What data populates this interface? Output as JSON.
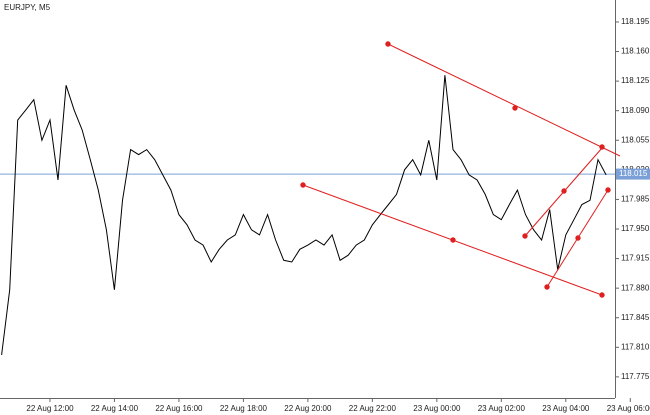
{
  "chart_data": {
    "type": "line",
    "title": "EURJPY, M5",
    "categories": [
      null,
      null,
      null,
      null,
      null,
      null,
      "22 Aug 12:00",
      null,
      null,
      null,
      null,
      null,
      null,
      null,
      "22 Aug 14:00",
      null,
      null,
      null,
      null,
      null,
      null,
      null,
      "22 Aug 16:00",
      null,
      null,
      null,
      null,
      null,
      null,
      null,
      "22 Aug 18:00",
      null,
      null,
      null,
      null,
      null,
      null,
      null,
      "22 Aug 20:00",
      null,
      null,
      null,
      null,
      null,
      null,
      null,
      "22 Aug 22:00",
      null,
      null,
      null,
      null,
      null,
      null,
      null,
      "23 Aug 00:00",
      null,
      null,
      null,
      null,
      null,
      null,
      null,
      "23 Aug 02:00",
      null,
      null,
      null,
      null,
      null,
      null,
      null,
      "23 Aug 04:00",
      null,
      null,
      null,
      null,
      null,
      null,
      null,
      "23 Aug 06:00"
    ],
    "series": [
      {
        "name": "EURJPY",
        "color": "#000000",
        "values": [
          117.801,
          117.878,
          118.079,
          118.091,
          118.103,
          118.055,
          118.079,
          118.008,
          118.12,
          118.091,
          118.067,
          118.032,
          117.996,
          117.949,
          117.878,
          117.984,
          118.044,
          118.038,
          118.044,
          118.032,
          118.014,
          117.996,
          117.967,
          117.955,
          117.937,
          117.931,
          117.911,
          117.926,
          117.937,
          117.943,
          117.967,
          117.949,
          117.943,
          117.967,
          117.937,
          117.913,
          117.911,
          117.926,
          117.931,
          117.937,
          117.931,
          117.943,
          117.913,
          117.919,
          117.931,
          117.937,
          117.955,
          117.967,
          117.979,
          117.991,
          118.02,
          118.032,
          118.014,
          118.055,
          118.008,
          118.132,
          118.044,
          118.032,
          118.014,
          118.008,
          117.991,
          117.967,
          117.961,
          117.979,
          117.996,
          117.967,
          117.949,
          117.937,
          117.973,
          117.902,
          117.943,
          117.961,
          117.979,
          117.984,
          118.032,
          118.014,
          null,
          null,
          null
        ]
      }
    ],
    "ylim": [
      117.75,
      118.221
    ],
    "yticks": [
      117.775,
      {
        "value": 117.81,
        "label": "117.810"
      },
      117.845,
      {
        "value": 117.88,
        "label": "117.880"
      },
      117.915,
      {
        "value": 117.95,
        "label": "117.950"
      },
      117.985,
      {
        "value": 118.02,
        "label": "118.020"
      },
      118.055,
      {
        "value": 118.09,
        "label": "118.090"
      },
      118.125,
      {
        "value": 118.16,
        "label": "118.160"
      },
      118.195
    ],
    "price_line": 118.015,
    "price_line_color": "#7ba0d8"
  }
}
